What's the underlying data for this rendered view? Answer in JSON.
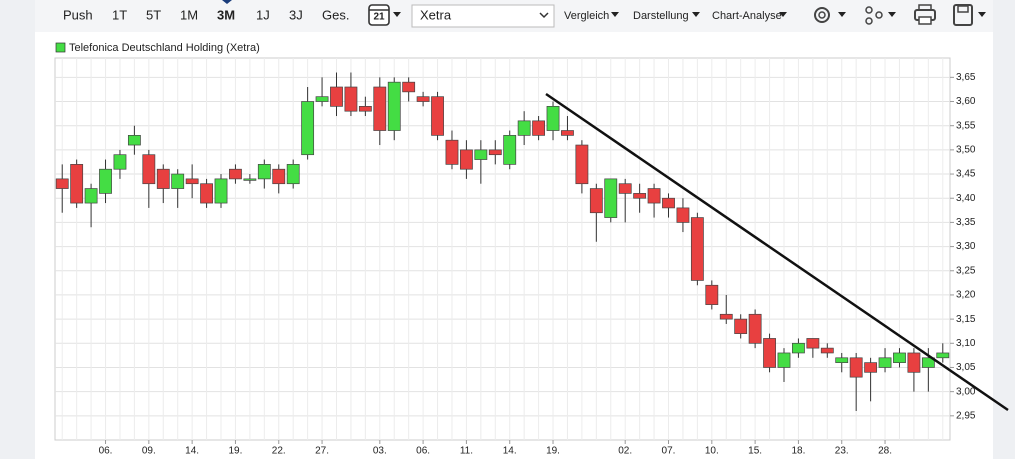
{
  "toolbar": {
    "ranges": [
      "Push",
      "1T",
      "5T",
      "1M",
      "3M",
      "1J",
      "3J",
      "Ges."
    ],
    "selected_range": 4,
    "calendar": "21",
    "exchange": "Xetra",
    "menus": [
      "Vergleich",
      "Darstellung",
      "Chart-Analyse"
    ]
  },
  "chart_data": {
    "type": "candlestick",
    "categories": [
      null,
      null,
      null,
      "06.",
      null,
      null,
      "09.",
      null,
      null,
      "14.",
      null,
      null,
      "19.",
      null,
      null,
      "22.",
      null,
      null,
      "27.",
      null,
      null,
      null,
      "03.",
      null,
      null,
      "06.",
      null,
      null,
      "11.",
      null,
      null,
      "14.",
      null,
      null,
      "19.",
      null,
      null,
      null,
      null,
      "02.",
      null,
      null,
      "07.",
      null,
      null,
      "10.",
      null,
      null,
      "15.",
      null,
      null,
      "18.",
      null,
      null,
      "23.",
      null,
      null,
      "28.",
      null,
      null,
      null,
      null
    ],
    "series": [
      {
        "name": "Telefonica Deutschland Holding (Xetra)",
        "up_color": "#44dd44",
        "down_color": "#e84040",
        "open": [
          3.44,
          3.47,
          3.39,
          3.41,
          3.46,
          3.51,
          3.49,
          3.46,
          3.42,
          3.44,
          3.43,
          3.39,
          3.46,
          3.44,
          3.44,
          3.46,
          3.43,
          3.49,
          3.6,
          3.63,
          3.63,
          3.59,
          3.63,
          3.54,
          3.64,
          3.61,
          3.61,
          3.52,
          3.5,
          3.48,
          3.5,
          3.47,
          3.53,
          3.56,
          3.54,
          3.54,
          3.51,
          3.42,
          3.36,
          3.43,
          3.41,
          3.42,
          3.4,
          3.38,
          3.36,
          3.22,
          3.16,
          3.15,
          3.16,
          3.11,
          3.05,
          3.08,
          3.11,
          3.09,
          3.06,
          3.07,
          3.06,
          3.05,
          3.06,
          3.08,
          3.05,
          3.07
        ],
        "high": [
          3.47,
          3.48,
          3.43,
          3.48,
          3.5,
          3.55,
          3.5,
          3.47,
          3.46,
          3.47,
          3.44,
          3.45,
          3.47,
          3.45,
          3.48,
          3.47,
          3.48,
          3.63,
          3.65,
          3.66,
          3.66,
          3.61,
          3.65,
          3.65,
          3.65,
          3.62,
          3.62,
          3.54,
          3.52,
          3.52,
          3.52,
          3.54,
          3.58,
          3.57,
          3.6,
          3.57,
          3.52,
          3.43,
          3.44,
          3.44,
          3.43,
          3.43,
          3.41,
          3.4,
          3.37,
          3.23,
          3.2,
          3.16,
          3.17,
          3.12,
          3.09,
          3.11,
          3.11,
          3.1,
          3.08,
          3.08,
          3.07,
          3.09,
          3.09,
          3.09,
          3.09,
          3.1
        ],
        "low": [
          3.37,
          3.38,
          3.34,
          3.39,
          3.44,
          3.49,
          3.38,
          3.39,
          3.38,
          3.4,
          3.38,
          3.38,
          3.43,
          3.43,
          3.42,
          3.41,
          3.42,
          3.48,
          3.59,
          3.57,
          3.57,
          3.57,
          3.51,
          3.52,
          3.6,
          3.59,
          3.52,
          3.46,
          3.44,
          3.43,
          3.47,
          3.46,
          3.51,
          3.52,
          3.52,
          3.52,
          3.41,
          3.31,
          3.35,
          3.35,
          3.37,
          3.36,
          3.36,
          3.33,
          3.22,
          3.17,
          3.14,
          3.11,
          3.09,
          3.04,
          3.02,
          3.07,
          3.07,
          3.07,
          3.04,
          2.96,
          2.98,
          3.04,
          3.05,
          3.0,
          3.0,
          3.06
        ],
        "close": [
          3.42,
          3.39,
          3.42,
          3.46,
          3.49,
          3.53,
          3.43,
          3.42,
          3.45,
          3.43,
          3.39,
          3.44,
          3.44,
          3.44,
          3.47,
          3.43,
          3.47,
          3.6,
          3.61,
          3.59,
          3.58,
          3.58,
          3.54,
          3.64,
          3.62,
          3.6,
          3.53,
          3.47,
          3.46,
          3.5,
          3.49,
          3.53,
          3.56,
          3.53,
          3.59,
          3.53,
          3.43,
          3.37,
          3.44,
          3.41,
          3.4,
          3.39,
          3.38,
          3.35,
          3.23,
          3.18,
          3.15,
          3.12,
          3.1,
          3.05,
          3.08,
          3.1,
          3.09,
          3.08,
          3.07,
          3.03,
          3.04,
          3.07,
          3.08,
          3.04,
          3.07,
          3.08
        ]
      }
    ],
    "ylim": [
      2.9,
      3.69
    ],
    "yticks": [
      {
        "value": 2.95,
        "label": "2,95"
      },
      {
        "value": 3.0,
        "label": "3,00"
      },
      {
        "value": 3.05,
        "label": "3,05"
      },
      {
        "value": 3.1,
        "label": "3,10"
      },
      {
        "value": 3.15,
        "label": "3,15"
      },
      {
        "value": 3.2,
        "label": "3,20"
      },
      {
        "value": 3.25,
        "label": "3,25"
      },
      {
        "value": 3.3,
        "label": "3,30"
      },
      {
        "value": 3.35,
        "label": "3,35"
      },
      {
        "value": 3.4,
        "label": "3,40"
      },
      {
        "value": 3.45,
        "label": "3,45"
      },
      {
        "value": 3.5,
        "label": "3,50"
      },
      {
        "value": 3.55,
        "label": "3,55"
      },
      {
        "value": 3.6,
        "label": "3,60"
      },
      {
        "value": 3.65,
        "label": "3,65"
      }
    ],
    "grid": true
  }
}
